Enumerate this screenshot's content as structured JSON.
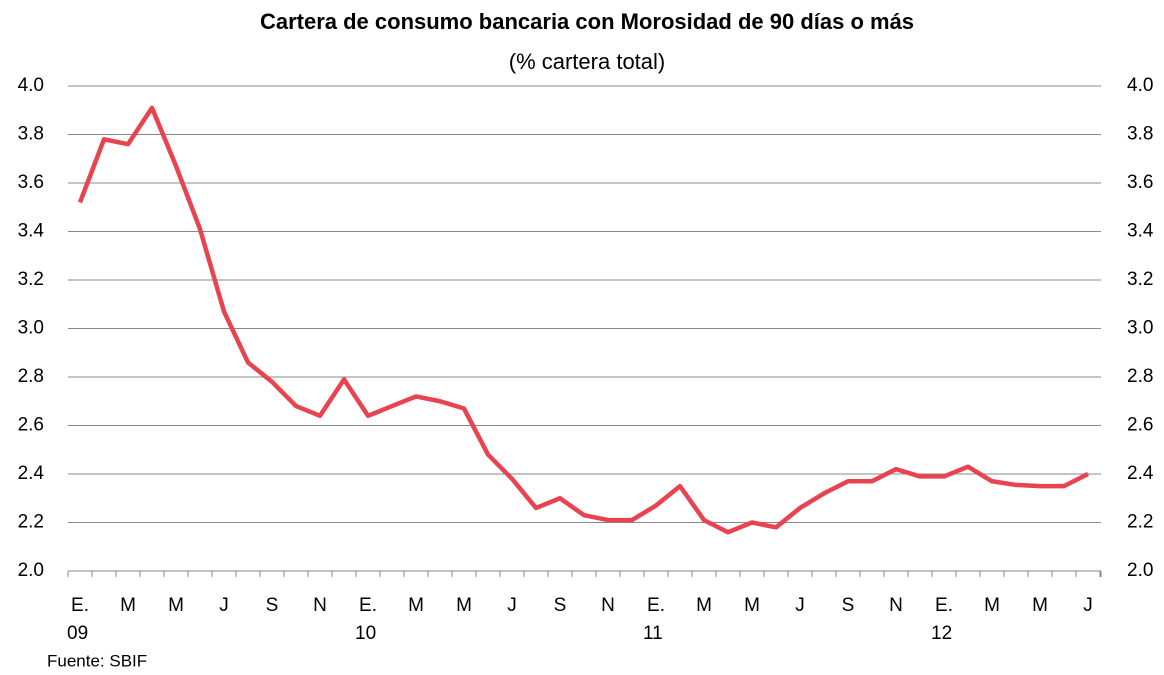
{
  "chart_data": {
    "type": "line",
    "title": "Cartera de consumo bancaria con Morosidad de 90 días o más",
    "subtitle": "(% cartera total)",
    "source": "Fuente: SBIF",
    "categories": [
      "E.",
      null,
      "M",
      null,
      "M",
      null,
      "J",
      null,
      "S",
      null,
      "N",
      null,
      "E.",
      null,
      "M",
      null,
      "M",
      null,
      "J",
      null,
      "S",
      null,
      "N",
      null,
      "E.",
      null,
      "M",
      null,
      "M",
      null,
      "J",
      null,
      "S",
      null,
      "N",
      null,
      "E.",
      null,
      "M",
      null,
      "M",
      null,
      "J"
    ],
    "years": [
      "09",
      null,
      null,
      null,
      null,
      null,
      null,
      null,
      null,
      null,
      null,
      null,
      "10",
      null,
      null,
      null,
      null,
      null,
      null,
      null,
      null,
      null,
      null,
      null,
      "11",
      null,
      null,
      null,
      null,
      null,
      null,
      null,
      null,
      null,
      null,
      null,
      "12",
      null,
      null,
      null,
      null,
      null,
      null
    ],
    "series": [
      {
        "name": "Morosidad",
        "color": "#e8434f",
        "values": [
          3.52,
          3.78,
          3.76,
          3.91,
          3.67,
          3.41,
          3.07,
          2.86,
          2.78,
          2.68,
          2.64,
          2.79,
          2.64,
          2.68,
          2.72,
          2.7,
          2.67,
          2.48,
          2.38,
          2.26,
          2.3,
          2.23,
          2.21,
          2.21,
          2.27,
          2.35,
          2.21,
          2.16,
          2.2,
          2.18,
          2.26,
          2.32,
          2.37,
          2.37,
          2.42,
          2.39,
          2.39,
          2.43,
          2.37,
          2.355,
          2.35,
          2.35,
          2.4
        ]
      }
    ],
    "ylim": [
      2.0,
      4.0
    ],
    "yticks": [
      {
        "value": 2,
        "label": "2.0"
      },
      {
        "value": 2.2,
        "label": "2.2"
      },
      {
        "value": 2.4,
        "label": "2.4"
      },
      {
        "value": 2.6,
        "label": "2.6"
      },
      {
        "value": 2.8,
        "label": "2.8"
      },
      {
        "value": 3,
        "label": "3.0"
      },
      {
        "value": 3.2,
        "label": "3.2"
      },
      {
        "value": 3.4,
        "label": "3.4"
      },
      {
        "value": 3.6,
        "label": "3.6"
      },
      {
        "value": 3.8,
        "label": "3.8"
      },
      {
        "value": 4,
        "label": "4.0"
      }
    ],
    "grid": true
  }
}
